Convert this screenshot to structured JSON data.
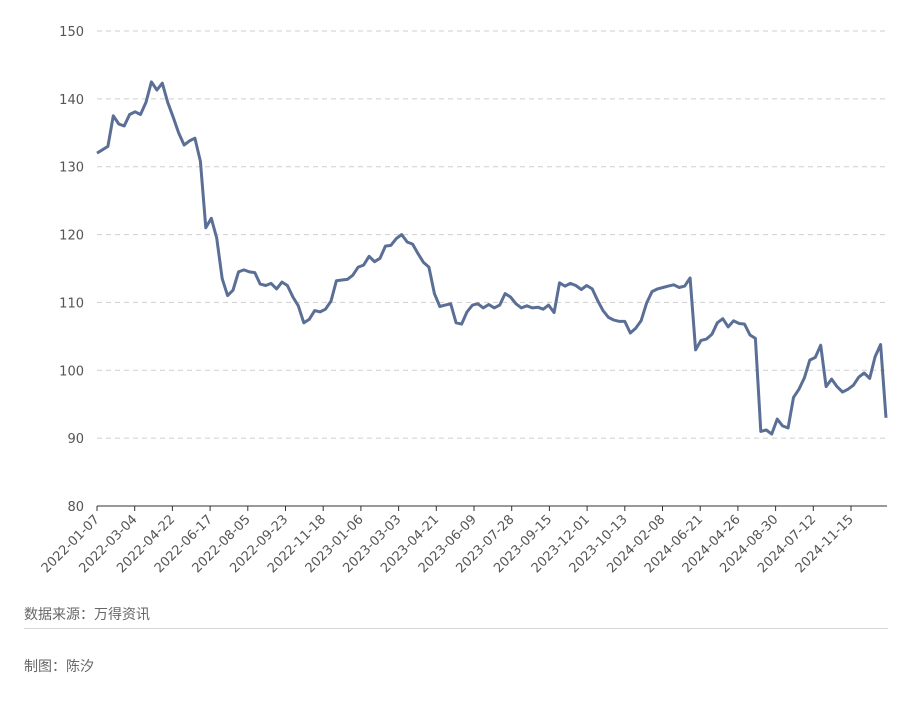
{
  "notes": {
    "source": "数据来源：万得资讯",
    "author": "制图：陈汐"
  },
  "chart_data": {
    "type": "line",
    "title": "",
    "xlabel": "",
    "ylabel": "",
    "ylim": [
      80,
      150
    ],
    "yticks": [
      80,
      90,
      100,
      110,
      120,
      130,
      140,
      150
    ],
    "grid": true,
    "line_color": "#5a6e96",
    "x_tick_labels": [
      "2022-01-07",
      "2022-03-04",
      "2022-04-22",
      "2022-06-17",
      "2022-08-05",
      "2022-09-23",
      "2022-11-18",
      "2023-01-06",
      "2023-03-03",
      "2023-04-21",
      "2023-06-09",
      "2023-07-28",
      "2023-09-15",
      "2023-12-01",
      "2023-10-13",
      "2024-02-08",
      "2024-06-21",
      "2024-04-26",
      "2024-08-30",
      "2024-07-12",
      "2024-11-15"
    ],
    "series": [
      {
        "values": [
          132.0,
          132.5,
          133.0,
          137.5,
          136.3,
          136.0,
          137.7,
          138.1,
          137.7,
          139.5,
          142.5,
          141.3,
          142.3,
          139.5,
          137.3,
          135.0,
          133.2,
          133.8,
          134.2,
          130.8,
          121.0,
          122.4,
          119.5,
          113.5,
          111.0,
          111.8,
          114.5,
          114.8,
          114.5,
          114.4,
          112.7,
          112.5,
          112.8,
          112.0,
          113.0,
          112.5,
          110.8,
          109.5,
          107.0,
          107.5,
          108.8,
          108.6,
          109.0,
          110.2,
          113.2,
          113.3,
          113.4,
          114.0,
          115.2,
          115.5,
          116.8,
          116.0,
          116.5,
          118.3,
          118.4,
          119.4,
          120.0,
          118.9,
          118.6,
          117.2,
          115.9,
          115.2,
          111.3,
          109.4,
          109.6,
          109.8,
          107.0,
          106.8,
          108.6,
          109.6,
          109.8,
          109.2,
          109.7,
          109.2,
          109.6,
          111.3,
          110.8,
          109.8,
          109.2,
          109.5,
          109.2,
          109.3,
          109.0,
          109.6,
          108.5,
          112.9,
          112.4,
          112.8,
          112.5,
          111.9,
          112.5,
          112.0,
          110.3,
          108.8,
          107.8,
          107.4,
          107.2,
          107.2,
          105.5,
          106.2,
          107.3,
          109.9,
          111.6,
          112.0,
          112.2,
          112.4,
          112.6,
          112.2,
          112.4,
          113.6,
          103.0,
          104.4,
          104.6,
          105.3,
          107.0,
          107.6,
          106.4,
          107.3,
          106.9,
          106.8,
          105.2,
          104.7,
          91.0,
          91.2,
          90.6,
          92.8,
          91.8,
          91.5,
          96.0,
          97.2,
          98.9,
          101.5,
          101.9,
          103.7,
          97.6,
          98.7,
          97.6,
          96.8,
          97.2,
          97.8,
          99.0,
          99.6,
          98.8,
          102.0,
          103.8,
          93.0
        ]
      }
    ]
  }
}
